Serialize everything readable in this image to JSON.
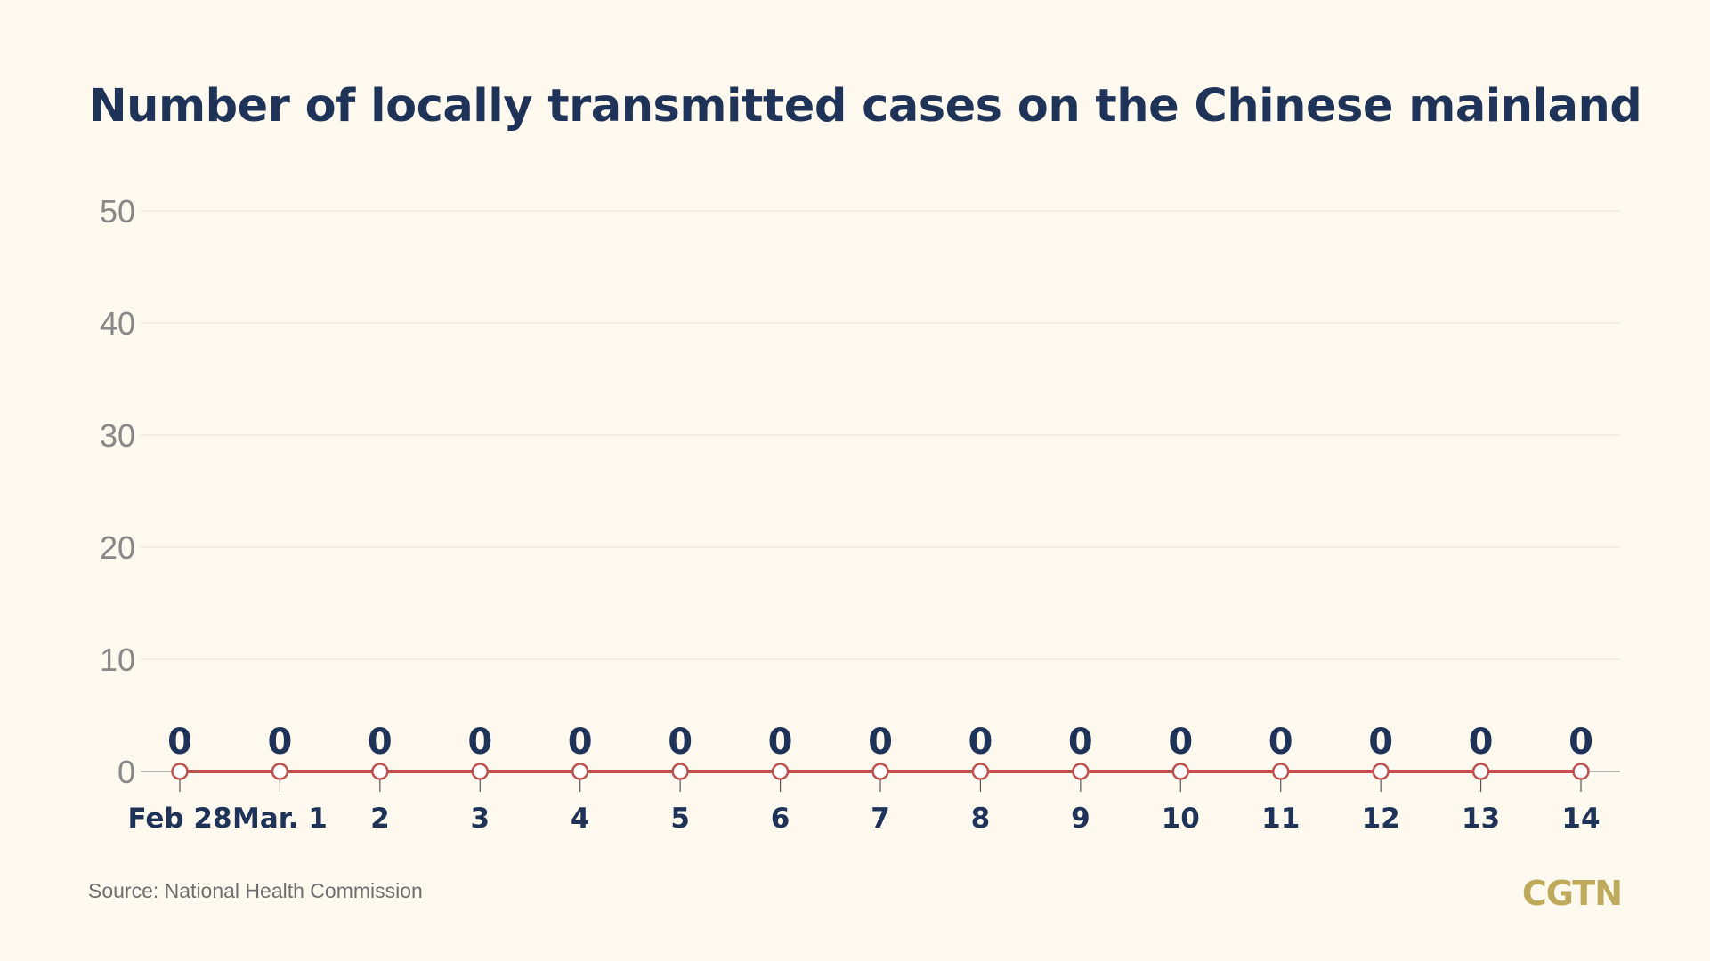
{
  "chart_data": {
    "type": "line",
    "title": "Number of locally transmitted cases on the Chinese mainland",
    "categories": [
      "Feb 28",
      "Mar. 1",
      "2",
      "3",
      "4",
      "5",
      "6",
      "7",
      "8",
      "9",
      "10",
      "11",
      "12",
      "13",
      "14"
    ],
    "series": [
      {
        "values": [
          0,
          0,
          0,
          0,
          0,
          0,
          0,
          0,
          0,
          0,
          0,
          0,
          0,
          0,
          0
        ],
        "color": "#c0504d"
      }
    ],
    "y_ticks": [
      "0",
      "10",
      "20",
      "30",
      "40",
      "50"
    ],
    "ylim": [
      0,
      50
    ],
    "grid": true,
    "data_labels": true,
    "source": "Source: National Health Commission",
    "brand": "CGTN",
    "colors": {
      "title": "#1f3358",
      "axis_text": "#888888",
      "grid": "#e5e1d6",
      "line": "#c0504d",
      "brand": "#bfa95a"
    }
  }
}
